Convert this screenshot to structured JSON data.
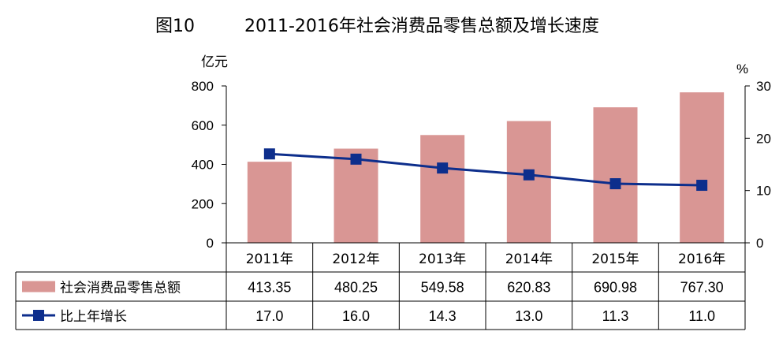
{
  "chart_data": {
    "type": "bar",
    "title_fig": "图10",
    "title": "2011-2016年社会消费品零售总额及增长速度",
    "y_left_unit": "亿元",
    "y_right_unit": "%",
    "ylim_left": [
      0,
      800
    ],
    "yticks_left": [
      "0",
      "200",
      "400",
      "600",
      "800"
    ],
    "ylim_right": [
      0,
      30
    ],
    "yticks_right": [
      "0",
      "10",
      "20",
      "30"
    ],
    "categories": [
      "2011年",
      "2012年",
      "2013年",
      "2014年",
      "2015年",
      "2016年"
    ],
    "series": [
      {
        "name": "社会消费品零售总额",
        "type": "bar",
        "axis": "left",
        "color": "#d99694",
        "values": [
          413.35,
          480.25,
          549.58,
          620.83,
          690.98,
          767.3
        ],
        "labels": [
          "413.35",
          "480.25",
          "549.58",
          "620.83",
          "690.98",
          "767.30"
        ]
      },
      {
        "name": "比上年增长",
        "type": "line",
        "axis": "right",
        "color": "#0d2e8c",
        "values": [
          17.0,
          16.0,
          14.3,
          13.0,
          11.3,
          11.0
        ],
        "labels": [
          "17.0",
          "16.0",
          "14.3",
          "13.0",
          "11.3",
          "11.0"
        ]
      }
    ],
    "grid": false,
    "legend": "data-table"
  }
}
